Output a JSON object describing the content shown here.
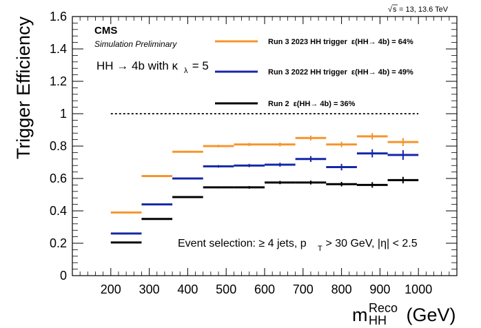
{
  "header": {
    "energy_prefix": "s",
    "energy_suffix": " = 13, 13.6 TeV",
    "experiment": "CMS",
    "status": "Simulation Preliminary",
    "process_text": "HH → 4b with κ",
    "process_sub": "λ",
    "process_value": " = 5"
  },
  "selection": {
    "prefix": "Event selection: ≥ 4 jets, p",
    "sub": "T",
    "suffix": " > 30 GeV, |η| < 2.5"
  },
  "chart_data": {
    "type": "scatter",
    "title": "",
    "xlabel_main": "m",
    "xlabel_sup": "Reco",
    "xlabel_sub": "HH",
    "xlabel_unit": " (GeV)",
    "ylabel": "Trigger Efficiency",
    "xlim": [
      100,
      1100
    ],
    "ylim": [
      0,
      1.6
    ],
    "x_ticks": [
      200,
      300,
      400,
      500,
      600,
      700,
      800,
      900,
      1000
    ],
    "y_ticks": [
      0,
      0.2,
      0.4,
      0.6,
      0.8,
      1,
      1.2,
      1.4,
      1.6
    ],
    "y_tick_labels": [
      "0",
      "0.2",
      "0.4",
      "0.6",
      "0.8",
      "1",
      "1.2",
      "1.4",
      "1.6"
    ],
    "reference_line": 1.0,
    "bin_edges": [
      200,
      280,
      360,
      440,
      520,
      600,
      680,
      760,
      840,
      920,
      1000
    ],
    "series": [
      {
        "name": "Run 3 2023 HH trigger",
        "legend_eff": "ε(HH→ 4b) = 64%",
        "color": "#f5952b",
        "values": [
          0.39,
          0.615,
          0.765,
          0.8,
          0.81,
          0.81,
          0.85,
          0.81,
          0.86,
          0.825
        ],
        "errors": [
          0.005,
          0.005,
          0.006,
          0.008,
          0.01,
          0.012,
          0.015,
          0.017,
          0.02,
          0.025
        ]
      },
      {
        "name": "Run 3 2022 HH trigger",
        "legend_eff": "ε(HH→ 4b) = 49%",
        "color": "#1427a8",
        "values": [
          0.26,
          0.44,
          0.6,
          0.675,
          0.68,
          0.685,
          0.72,
          0.67,
          0.755,
          0.745
        ],
        "errors": [
          0.005,
          0.005,
          0.006,
          0.008,
          0.01,
          0.012,
          0.018,
          0.02,
          0.025,
          0.03
        ]
      },
      {
        "name": "Run 2",
        "legend_eff": "ε(HH→ 4b) = 36%",
        "color": "#000000",
        "values": [
          0.205,
          0.35,
          0.485,
          0.545,
          0.545,
          0.575,
          0.575,
          0.565,
          0.56,
          0.59
        ],
        "errors": [
          0.004,
          0.004,
          0.005,
          0.006,
          0.008,
          0.01,
          0.012,
          0.014,
          0.017,
          0.02
        ]
      }
    ]
  }
}
